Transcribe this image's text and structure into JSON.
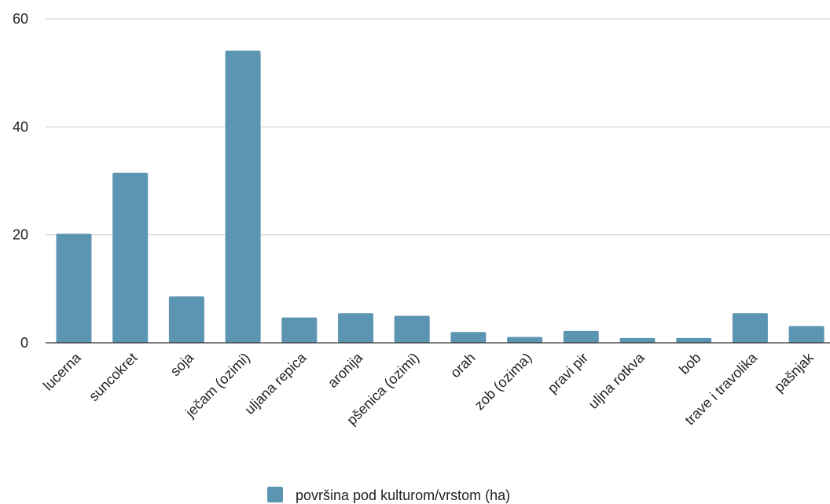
{
  "chart_data": {
    "type": "bar",
    "categories": [
      "lucerna",
      "suncokret",
      "soja",
      "ječam (ozimi)",
      "uljana repica",
      "aronija",
      "pšenica (ozimi)",
      "orah",
      "zob (ozima)",
      "pravi pir",
      "uljna rotkva",
      "bob",
      "trave i travolika",
      "pašnjak"
    ],
    "series": [
      {
        "name": "površina pod kulturom/vrstom (ha)",
        "values": [
          20.2,
          31.5,
          8.6,
          54.1,
          4.7,
          5.5,
          5.0,
          2.0,
          1.1,
          2.2,
          0.9,
          0.9,
          5.5,
          3.1
        ],
        "color": "#5b95b2"
      }
    ],
    "ylim": [
      0,
      60
    ],
    "yticks": [
      "0",
      "20",
      "40",
      "60"
    ],
    "grid": true,
    "legend_position": "bottom",
    "xlabel": "",
    "ylabel": ""
  }
}
